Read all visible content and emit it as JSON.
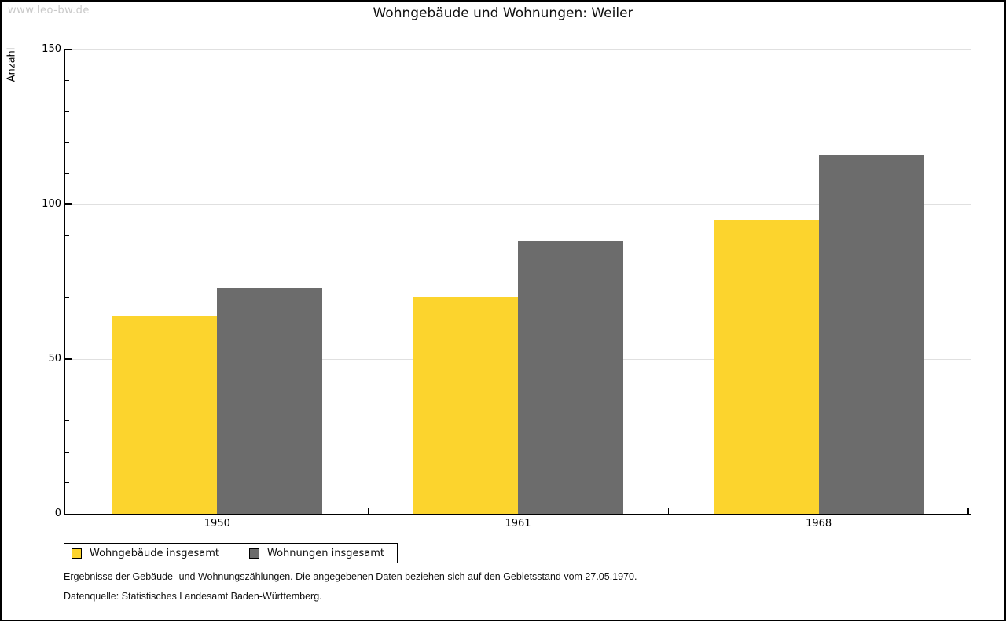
{
  "watermark": "www.leo-bw.de",
  "title": "Wohngebäude und Wohnungen: Weiler",
  "footer": {
    "line1": "Ergebnisse der Gebäude- und Wohnungszählungen. Die angegebenen Daten beziehen sich auf den Gebietsstand vom 27.05.1970.",
    "line2": "Datenquelle: Statistisches Landesamt Baden-Württemberg."
  },
  "chart_data": {
    "type": "bar",
    "title": "Wohngebäude und Wohnungen: Weiler",
    "categories": [
      "1950",
      "1961",
      "1968"
    ],
    "series": [
      {
        "name": "Wohngebäude insgesamt",
        "color": "#fcd42d",
        "values": [
          64,
          70,
          95
        ]
      },
      {
        "name": "Wohnungen insgesamt",
        "color": "#6c6c6c",
        "values": [
          73,
          88,
          116
        ]
      }
    ],
    "xlabel": "",
    "ylabel": "Anzahl",
    "ylim": [
      0,
      150
    ],
    "ytick_interval": 50,
    "minor_tick_interval": 10,
    "grid": true,
    "gridline_color": "#e0e0e0",
    "legend_position": "bottom-left"
  }
}
